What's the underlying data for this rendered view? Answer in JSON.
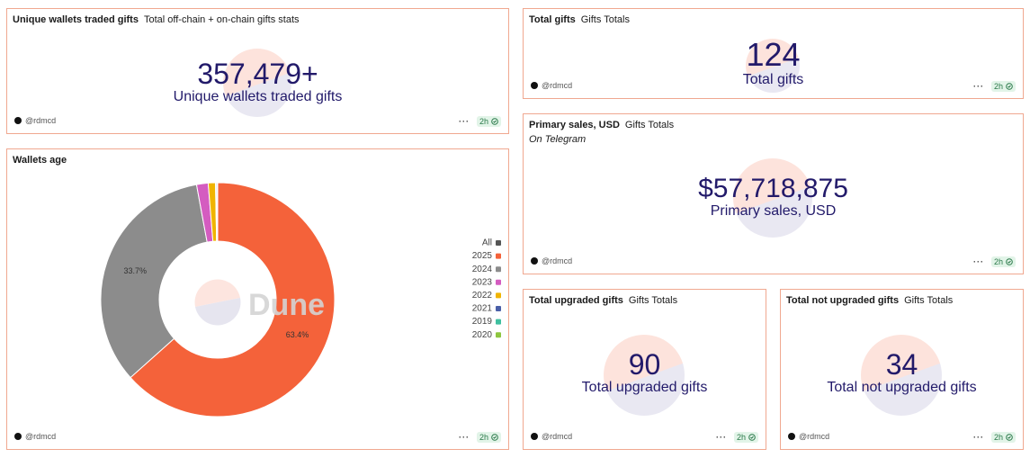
{
  "widgets": [
    {
      "title": "Unique wallets traded gifts",
      "subtitle": "Total off-chain + on-chain gifts stats",
      "value": "357,479+",
      "label": "Unique wallets traded gifts",
      "author": "@rdmcd",
      "age": "2h"
    },
    {
      "title": "Total gifts",
      "subtitle": "Gifts Totals",
      "value": "124",
      "label": "Total gifts",
      "author": "@rdmcd",
      "age": "2h"
    },
    {
      "title": "Primary sales, USD",
      "subtitle": "Gifts Totals",
      "note": "On Telegram",
      "value": "$57,718,875",
      "label": "Primary sales, USD",
      "author": "@rdmcd",
      "age": "2h"
    },
    {
      "title": "Total upgraded gifts",
      "subtitle": "Gifts Totals",
      "value": "90",
      "label": "Total upgraded gifts",
      "author": "@rdmcd",
      "age": "2h"
    },
    {
      "title": "Total not upgraded gifts",
      "subtitle": "Gifts Totals",
      "value": "34",
      "label": "Total not upgraded gifts",
      "author": "@rdmcd",
      "age": "2h"
    }
  ],
  "chart_data": {
    "type": "pie",
    "title": "Wallets age",
    "watermark": "Dune",
    "categories": [
      "All",
      "2025",
      "2024",
      "2023",
      "2022",
      "2021",
      "2019",
      "2020"
    ],
    "values": [
      null,
      63.4,
      33.7,
      1.6,
      1.0,
      0.15,
      0.1,
      0.05
    ],
    "value_labels": [
      null,
      "63.4%",
      "33.7%",
      null,
      null,
      null,
      null,
      null
    ],
    "colors": [
      "#555555",
      "#f4623a",
      "#8c8c8c",
      "#d45cc0",
      "#f0b400",
      "#4a5fa8",
      "#3fbf9f",
      "#8ec63f"
    ],
    "author": "@rdmcd",
    "age": "2h"
  }
}
